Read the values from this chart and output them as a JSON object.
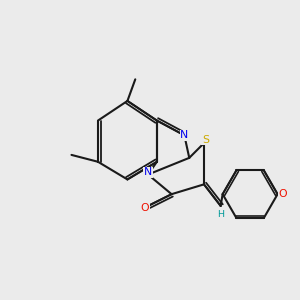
{
  "background_color": "#ebebeb",
  "bond_color": "#1a1a1a",
  "atom_colors": {
    "N": "#0000ee",
    "O_carbonyl": "#ee1100",
    "O_methoxy": "#ee1100",
    "S": "#ccaa00",
    "H": "#009999",
    "C": "#1a1a1a"
  },
  "figsize": [
    3.0,
    3.0
  ],
  "dpi": 100
}
